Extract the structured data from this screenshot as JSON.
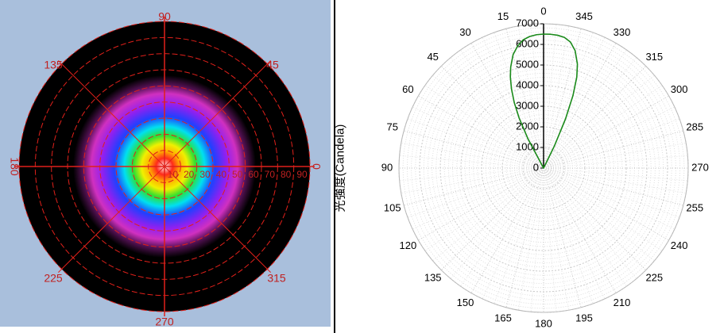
{
  "intensity_map": {
    "angle_labels": [
      "90",
      "135",
      "45",
      "180",
      "0",
      "225",
      "315",
      "270"
    ],
    "radial_labels": [
      "10",
      "20",
      "30",
      "40",
      "50",
      "60",
      "70",
      "80",
      "90"
    ],
    "colors": {
      "background": "#a9bfdc",
      "grid": "#e0201a",
      "label": "#c02020"
    }
  },
  "chart_data": {
    "type": "polar-line",
    "ylabel": "光強度(Candela)",
    "angular_ticks": [
      "0",
      "15",
      "30",
      "45",
      "60",
      "75",
      "90",
      "105",
      "120",
      "135",
      "150",
      "165",
      "180",
      "195",
      "210",
      "225",
      "240",
      "255",
      "270",
      "285",
      "300",
      "315",
      "330",
      "345"
    ],
    "radial_ticks": [
      "0",
      "1000",
      "2000",
      "3000",
      "4000",
      "5000",
      "6000",
      "7000"
    ],
    "rlim": [
      0,
      7000
    ],
    "series": [
      {
        "color": "#1a8a1a",
        "theta": [
          0,
          3,
          6,
          9,
          12,
          15,
          18,
          20,
          22,
          24,
          26,
          28,
          30,
          332,
          334,
          336,
          338,
          340,
          342,
          345,
          348,
          351,
          354,
          357,
          360
        ],
        "r": [
          6500,
          6480,
          6420,
          6300,
          6050,
          5700,
          5150,
          4700,
          4150,
          3500,
          2700,
          1600,
          0,
          0,
          1200,
          2600,
          3800,
          4700,
          5300,
          5900,
          6250,
          6420,
          6480,
          6500,
          6500
        ]
      }
    ],
    "grid": true
  }
}
